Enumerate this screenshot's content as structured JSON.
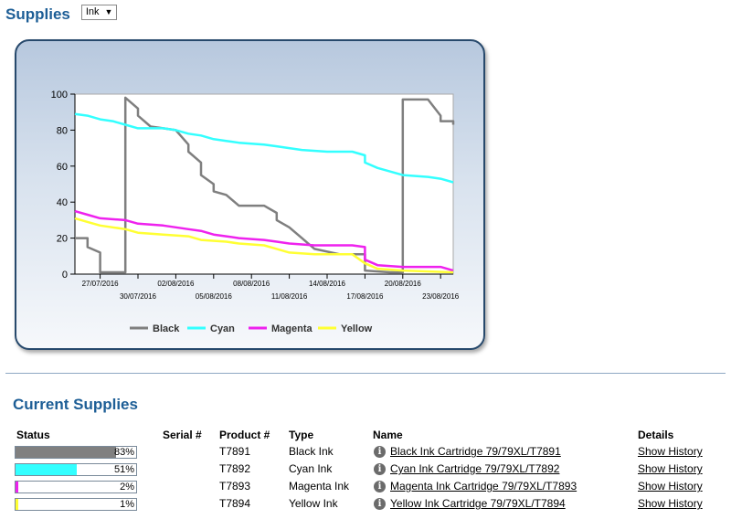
{
  "supplies": {
    "title": "Supplies",
    "selected_filter": "Ink"
  },
  "chart_data": {
    "type": "line",
    "x_type": "date",
    "x_range": [
      "2016-07-25",
      "2016-08-24"
    ],
    "ylim": [
      0,
      100
    ],
    "y_ticks": [
      0,
      20,
      40,
      60,
      80,
      100
    ],
    "x_ticks_upper": [
      "27/07/2016",
      "02/08/2016",
      "08/08/2016",
      "14/08/2016",
      "20/08/2016"
    ],
    "x_ticks_lower": [
      "30/07/2016",
      "05/08/2016",
      "11/08/2016",
      "17/08/2016",
      "23/08/2016"
    ],
    "legend_position": "bottom",
    "grid": false,
    "series": [
      {
        "name": "Black",
        "color": "#7f7f7f",
        "points": [
          [
            "2016-07-25",
            20
          ],
          [
            "2016-07-26",
            20
          ],
          [
            "2016-07-26",
            15
          ],
          [
            "2016-07-27",
            12
          ],
          [
            "2016-07-27",
            5
          ],
          [
            "2016-07-27",
            1
          ],
          [
            "2016-07-29",
            1
          ],
          [
            "2016-07-29",
            98
          ],
          [
            "2016-07-30",
            92
          ],
          [
            "2016-07-30",
            88
          ],
          [
            "2016-07-31",
            82
          ],
          [
            "2016-08-01",
            81
          ],
          [
            "2016-08-02",
            80
          ],
          [
            "2016-08-03",
            72
          ],
          [
            "2016-08-03",
            68
          ],
          [
            "2016-08-04",
            62
          ],
          [
            "2016-08-04",
            55
          ],
          [
            "2016-08-05",
            50
          ],
          [
            "2016-08-05",
            46
          ],
          [
            "2016-08-06",
            44
          ],
          [
            "2016-08-07",
            38
          ],
          [
            "2016-08-09",
            38
          ],
          [
            "2016-08-10",
            34
          ],
          [
            "2016-08-10",
            30
          ],
          [
            "2016-08-11",
            26
          ],
          [
            "2016-08-12",
            20
          ],
          [
            "2016-08-13",
            14
          ],
          [
            "2016-08-15",
            11
          ],
          [
            "2016-08-17",
            11
          ],
          [
            "2016-08-17",
            6
          ],
          [
            "2016-08-17",
            2
          ],
          [
            "2016-08-19",
            1
          ],
          [
            "2016-08-20",
            1
          ],
          [
            "2016-08-20",
            97
          ],
          [
            "2016-08-22",
            97
          ],
          [
            "2016-08-23",
            88
          ],
          [
            "2016-08-23",
            85
          ],
          [
            "2016-08-24",
            85
          ],
          [
            "2016-08-24",
            83
          ]
        ]
      },
      {
        "name": "Cyan",
        "color": "#33ffff",
        "points": [
          [
            "2016-07-25",
            89
          ],
          [
            "2016-07-26",
            88
          ],
          [
            "2016-07-27",
            86
          ],
          [
            "2016-07-28",
            85
          ],
          [
            "2016-07-29",
            83
          ],
          [
            "2016-07-30",
            81
          ],
          [
            "2016-08-01",
            81
          ],
          [
            "2016-08-02",
            80
          ],
          [
            "2016-08-03",
            78
          ],
          [
            "2016-08-04",
            77
          ],
          [
            "2016-08-05",
            75
          ],
          [
            "2016-08-06",
            74
          ],
          [
            "2016-08-07",
            73
          ],
          [
            "2016-08-09",
            72
          ],
          [
            "2016-08-10",
            71
          ],
          [
            "2016-08-11",
            70
          ],
          [
            "2016-08-12",
            69
          ],
          [
            "2016-08-14",
            68
          ],
          [
            "2016-08-16",
            68
          ],
          [
            "2016-08-17",
            66
          ],
          [
            "2016-08-17",
            62
          ],
          [
            "2016-08-18",
            59
          ],
          [
            "2016-08-19",
            57
          ],
          [
            "2016-08-20",
            55
          ],
          [
            "2016-08-22",
            54
          ],
          [
            "2016-08-23",
            53
          ],
          [
            "2016-08-24",
            51
          ]
        ]
      },
      {
        "name": "Magenta",
        "color": "#ee22ee",
        "points": [
          [
            "2016-07-25",
            35
          ],
          [
            "2016-07-26",
            33
          ],
          [
            "2016-07-27",
            31
          ],
          [
            "2016-07-29",
            30
          ],
          [
            "2016-07-30",
            28
          ],
          [
            "2016-08-01",
            27
          ],
          [
            "2016-08-02",
            26
          ],
          [
            "2016-08-03",
            25
          ],
          [
            "2016-08-04",
            24
          ],
          [
            "2016-08-05",
            22
          ],
          [
            "2016-08-06",
            21
          ],
          [
            "2016-08-07",
            20
          ],
          [
            "2016-08-09",
            19
          ],
          [
            "2016-08-10",
            18
          ],
          [
            "2016-08-11",
            17
          ],
          [
            "2016-08-13",
            16
          ],
          [
            "2016-08-16",
            16
          ],
          [
            "2016-08-17",
            15
          ],
          [
            "2016-08-17",
            8
          ],
          [
            "2016-08-18",
            5
          ],
          [
            "2016-08-20",
            4
          ],
          [
            "2016-08-23",
            4
          ],
          [
            "2016-08-24",
            2
          ]
        ]
      },
      {
        "name": "Yellow",
        "color": "#ffff33",
        "points": [
          [
            "2016-07-25",
            31
          ],
          [
            "2016-07-26",
            29
          ],
          [
            "2016-07-27",
            27
          ],
          [
            "2016-07-29",
            25
          ],
          [
            "2016-07-30",
            23
          ],
          [
            "2016-08-01",
            22
          ],
          [
            "2016-08-03",
            21
          ],
          [
            "2016-08-04",
            19
          ],
          [
            "2016-08-06",
            18
          ],
          [
            "2016-08-07",
            17
          ],
          [
            "2016-08-09",
            16
          ],
          [
            "2016-08-10",
            14
          ],
          [
            "2016-08-11",
            12
          ],
          [
            "2016-08-13",
            11
          ],
          [
            "2016-08-16",
            11
          ],
          [
            "2016-08-17",
            6
          ],
          [
            "2016-08-18",
            3
          ],
          [
            "2016-08-20",
            2
          ],
          [
            "2016-08-24",
            1
          ]
        ]
      }
    ]
  },
  "current_supplies": {
    "title": "Current Supplies",
    "headers": {
      "status": "Status",
      "serial": "Serial #",
      "product": "Product #",
      "type": "Type",
      "name": "Name",
      "details": "Details"
    },
    "rows": [
      {
        "level_pct": 83,
        "level_label": "83%",
        "color": "#808080",
        "serial": "",
        "product": "T7891",
        "type": "Black Ink",
        "name": "Black Ink Cartridge 79/79XL/T7891",
        "details": "Show History"
      },
      {
        "level_pct": 51,
        "level_label": "51%",
        "color": "#33ffff",
        "serial": "",
        "product": "T7892",
        "type": "Cyan Ink",
        "name": "Cyan Ink Cartridge 79/79XL/T7892",
        "details": "Show History"
      },
      {
        "level_pct": 2,
        "level_label": "2%",
        "color": "#ee22ee",
        "serial": "",
        "product": "T7893",
        "type": "Magenta Ink",
        "name": "Magenta Ink Cartridge 79/79XL/T7893",
        "details": "Show History"
      },
      {
        "level_pct": 1,
        "level_label": "1%",
        "color": "#ffff33",
        "serial": "",
        "product": "T7894",
        "type": "Yellow Ink",
        "name": "Yellow Ink Cartridge 79/79XL/T7894",
        "details": "Show History"
      }
    ]
  },
  "icons": {
    "info": "info-icon",
    "dropdown": "chevron-down-icon"
  }
}
